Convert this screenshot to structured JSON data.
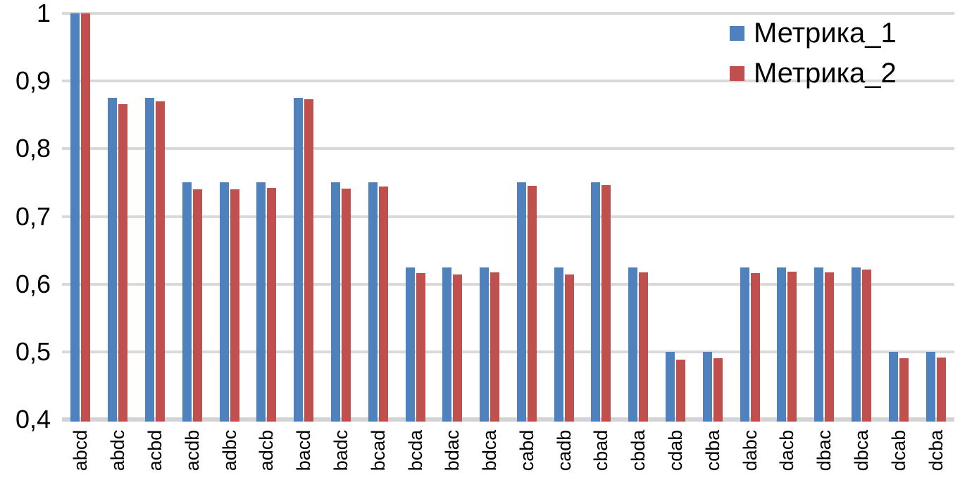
{
  "chart_data": {
    "type": "bar",
    "title": "",
    "xlabel": "",
    "ylabel": "",
    "categories": [
      "abcd",
      "abdc",
      "acbd",
      "acdb",
      "adbc",
      "adcb",
      "bacd",
      "badc",
      "bcad",
      "bcda",
      "bdac",
      "bdca",
      "cabd",
      "cadb",
      "cbad",
      "cbda",
      "cdab",
      "cdba",
      "dabc",
      "dacb",
      "dbac",
      "dbca",
      "dcab",
      "dcba"
    ],
    "series": [
      {
        "name": "Метрика_1",
        "color": "#4f81bd",
        "values": [
          1.0,
          0.875,
          0.875,
          0.75,
          0.75,
          0.75,
          0.875,
          0.75,
          0.75,
          0.625,
          0.625,
          0.625,
          0.75,
          0.625,
          0.75,
          0.625,
          0.5,
          0.5,
          0.625,
          0.625,
          0.625,
          0.625,
          0.5,
          0.5
        ]
      },
      {
        "name": "Метрика_2",
        "color": "#c0504d",
        "values": [
          1.0,
          0.866,
          0.87,
          0.74,
          0.74,
          0.742,
          0.873,
          0.741,
          0.744,
          0.616,
          0.614,
          0.617,
          0.745,
          0.614,
          0.746,
          0.617,
          0.488,
          0.49,
          0.616,
          0.618,
          0.617,
          0.621,
          0.49,
          0.491
        ]
      }
    ],
    "ylim": [
      0.4,
      1.0
    ],
    "ytick_values": [
      1.0,
      0.9,
      0.8,
      0.7,
      0.6,
      0.5,
      0.4
    ],
    "ytick_labels": [
      "1",
      "0,9",
      "0,8",
      "0,7",
      "0,6",
      "0,5",
      "0,4"
    ],
    "decimal_separator": ",",
    "grid": "horizontal",
    "gridline_color": "#d9d9d9",
    "legend_position": "top-right",
    "xlabel_rotation": 90
  }
}
